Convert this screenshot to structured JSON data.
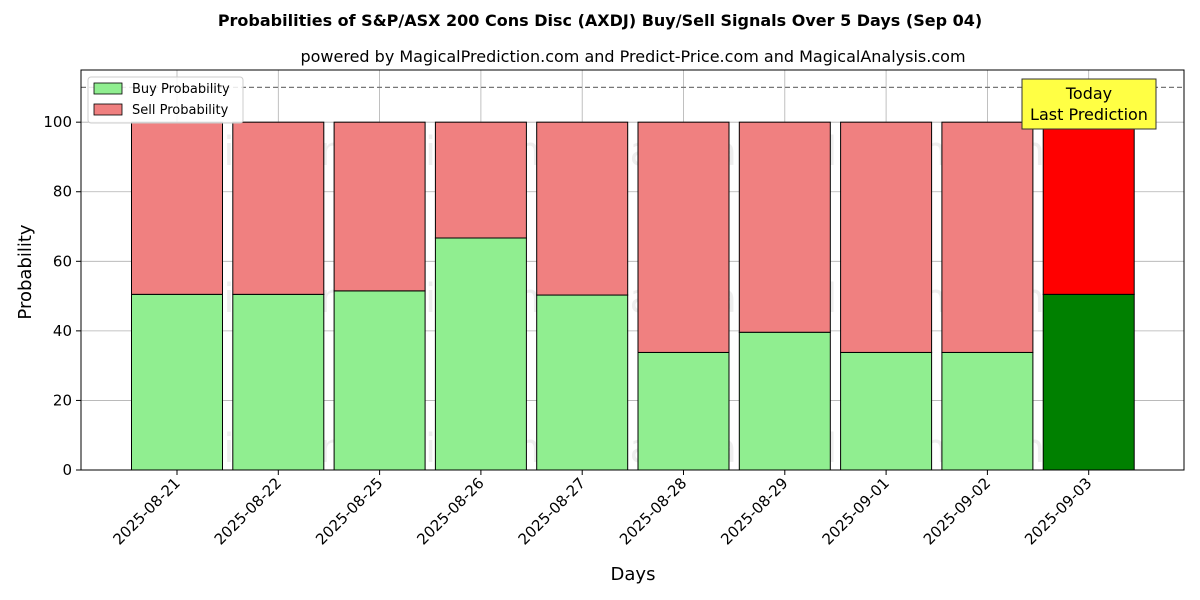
{
  "chart_data": {
    "type": "bar",
    "stacked": true,
    "title": "Probabilities of S&P/ASX 200 Cons Disc (AXDJ) Buy/Sell Signals Over 5 Days (Sep 04)",
    "subtitle": "powered by MagicalPrediction.com and Predict-Price.com and MagicalAnalysis.com",
    "xlabel": "Days",
    "ylabel": "Probability",
    "ylim": [
      0,
      115
    ],
    "yticks": [
      0,
      20,
      40,
      60,
      80,
      100
    ],
    "reference_line": 110,
    "grid": true,
    "legend_position": "top-left",
    "categories": [
      "2025-08-21",
      "2025-08-22",
      "2025-08-25",
      "2025-08-26",
      "2025-08-27",
      "2025-08-28",
      "2025-08-29",
      "2025-09-01",
      "2025-09-02",
      "2025-09-03"
    ],
    "series": [
      {
        "name": "Buy Probability",
        "values": [
          50.5,
          50.5,
          51.5,
          66.7,
          50.3,
          33.8,
          39.6,
          33.8,
          33.8,
          50.5
        ],
        "color": "#90EE90",
        "highlight_color": "#008000"
      },
      {
        "name": "Sell Probability",
        "values": [
          49.5,
          49.5,
          48.5,
          33.3,
          49.7,
          66.2,
          60.4,
          66.2,
          66.2,
          49.5
        ],
        "color": "#F08080",
        "highlight_color": "#FF0000"
      }
    ],
    "highlight_index": 9,
    "annotation": {
      "lines": [
        "Today",
        "Last Prediction"
      ],
      "background": "#FFFF44"
    },
    "watermarks": [
      "MagicalAnalysis.com",
      "MagicalPrediction.com"
    ]
  }
}
